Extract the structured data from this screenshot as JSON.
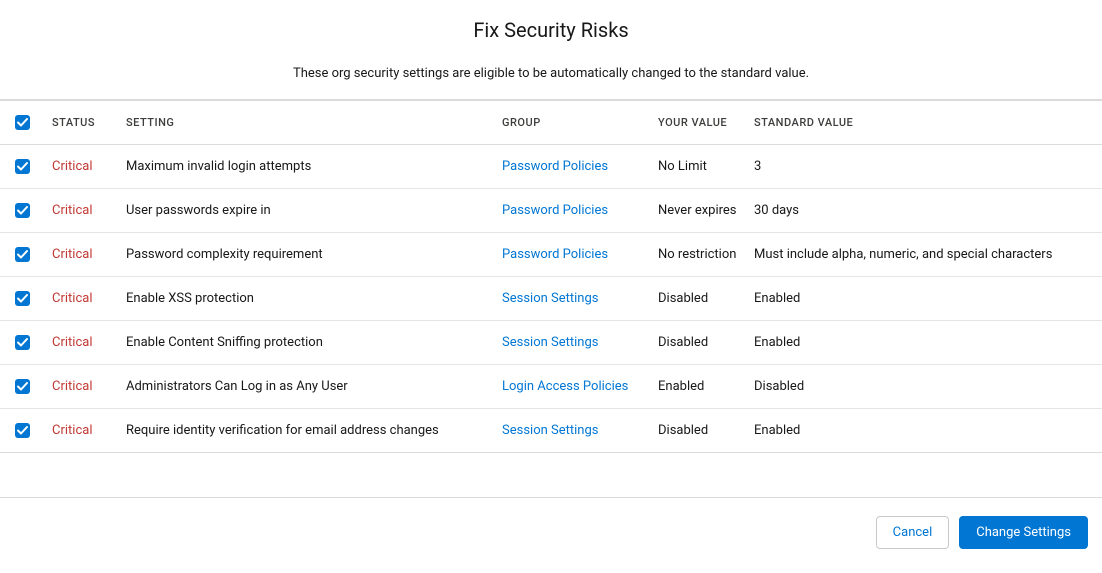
{
  "header": {
    "title": "Fix Security Risks",
    "subtitle": "These org security settings are eligible to be automatically changed to the standard value."
  },
  "columns": {
    "status": "STATUS",
    "setting": "SETTING",
    "group": "GROUP",
    "your_value": "YOUR VALUE",
    "standard_value": "STANDARD VALUE"
  },
  "status_colors": {
    "Critical": "#c23934"
  },
  "link_color": "#0176d3",
  "rows": [
    {
      "checked": true,
      "status": "Critical",
      "setting": "Maximum invalid login attempts",
      "group": "Password Policies",
      "your_value": "No Limit",
      "standard_value": "3"
    },
    {
      "checked": true,
      "status": "Critical",
      "setting": "User passwords expire in",
      "group": "Password Policies",
      "your_value": "Never expires",
      "standard_value": "30 days"
    },
    {
      "checked": true,
      "status": "Critical",
      "setting": "Password complexity requirement",
      "group": "Password Policies",
      "your_value": "No restriction",
      "standard_value": "Must include alpha, numeric, and special characters"
    },
    {
      "checked": true,
      "status": "Critical",
      "setting": "Enable XSS protection",
      "group": "Session Settings",
      "your_value": "Disabled",
      "standard_value": "Enabled"
    },
    {
      "checked": true,
      "status": "Critical",
      "setting": "Enable Content Sniffing protection",
      "group": "Session Settings",
      "your_value": "Disabled",
      "standard_value": "Enabled"
    },
    {
      "checked": true,
      "status": "Critical",
      "setting": "Administrators Can Log in as Any User",
      "group": "Login Access Policies",
      "your_value": "Enabled",
      "standard_value": "Disabled"
    },
    {
      "checked": true,
      "status": "Critical",
      "setting": "Require identity verification for email address changes",
      "group": "Session Settings",
      "your_value": "Disabled",
      "standard_value": "Enabled"
    }
  ],
  "footer": {
    "cancel": "Cancel",
    "change": "Change Settings"
  }
}
